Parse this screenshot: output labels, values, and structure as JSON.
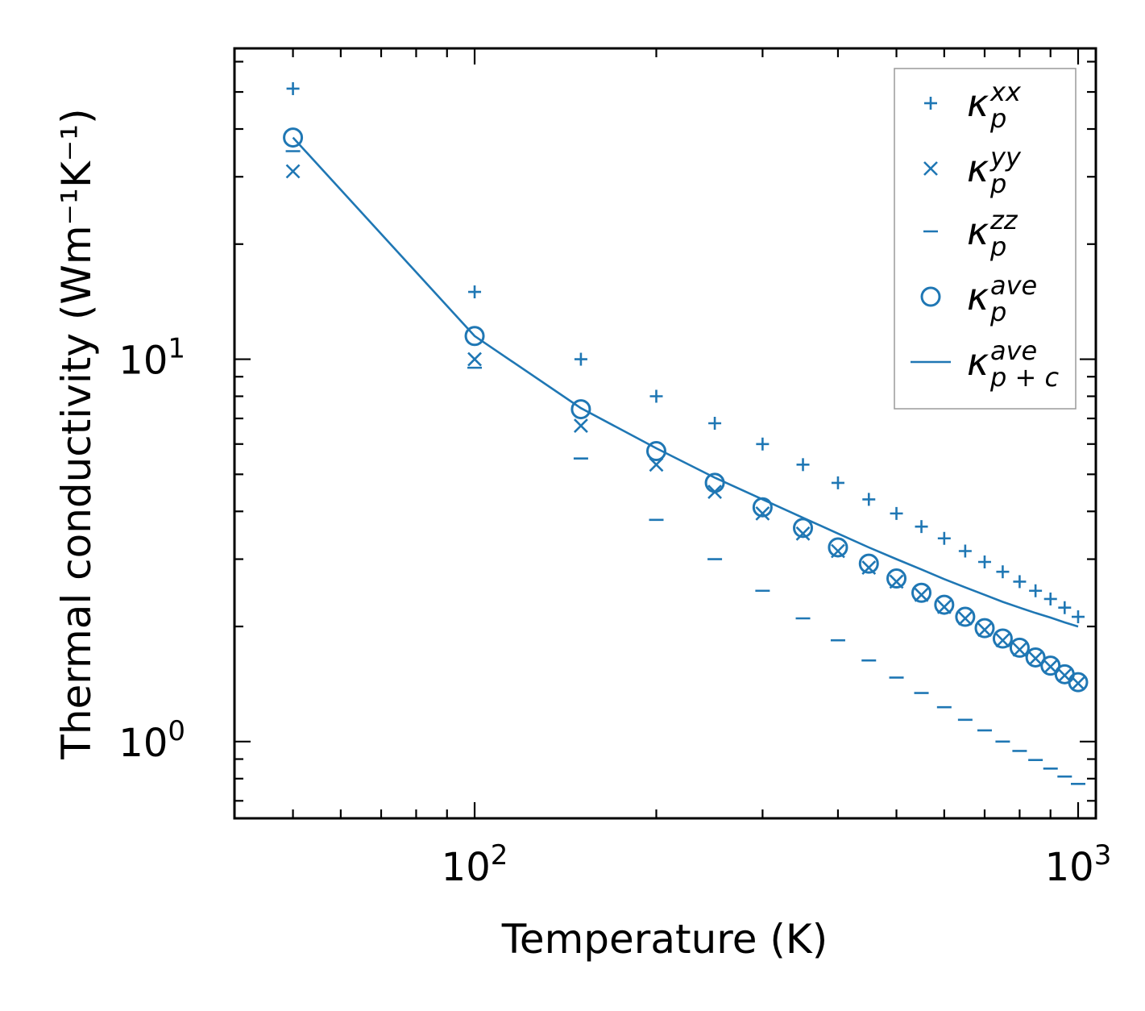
{
  "chart_data": {
    "type": "scatter",
    "xscale": "log",
    "yscale": "log",
    "xlabel": "Temperature (K)",
    "ylabel": "Thermal conductivity (Wm⁻¹K⁻¹)",
    "xlim": [
      40,
      1070
    ],
    "ylim": [
      0.63,
      65
    ],
    "xticks": [
      {
        "base": "10",
        "exp": "2",
        "value": 100
      },
      {
        "base": "10",
        "exp": "3",
        "value": 1000
      }
    ],
    "yticks": [
      {
        "base": "10",
        "exp": "0",
        "value": 1
      },
      {
        "base": "10",
        "exp": "1",
        "value": 10
      }
    ],
    "color": "#1f77b4",
    "x": [
      50,
      100,
      150,
      200,
      250,
      300,
      350,
      400,
      450,
      500,
      550,
      600,
      650,
      700,
      750,
      800,
      850,
      900,
      950,
      1000
    ],
    "series": [
      {
        "name": "kxx",
        "marker": "plus",
        "values": [
          51.0,
          15.0,
          10.0,
          8.0,
          6.8,
          6.0,
          5.3,
          4.75,
          4.3,
          3.95,
          3.65,
          3.4,
          3.15,
          2.95,
          2.78,
          2.62,
          2.48,
          2.36,
          2.24,
          2.12
        ]
      },
      {
        "name": "kyy",
        "marker": "x",
        "values": [
          31.0,
          10.0,
          6.7,
          5.3,
          4.5,
          3.95,
          3.5,
          3.15,
          2.85,
          2.62,
          2.42,
          2.25,
          2.1,
          1.96,
          1.84,
          1.74,
          1.65,
          1.57,
          1.49,
          1.42
        ]
      },
      {
        "name": "kzz",
        "marker": "hline",
        "values": [
          35.0,
          9.5,
          5.5,
          3.8,
          3.0,
          2.48,
          2.1,
          1.84,
          1.63,
          1.47,
          1.34,
          1.23,
          1.14,
          1.07,
          1.0,
          0.945,
          0.895,
          0.85,
          0.81,
          0.775
        ]
      },
      {
        "name": "kave",
        "marker": "circle",
        "values": [
          38.0,
          11.5,
          7.4,
          5.75,
          4.75,
          4.1,
          3.62,
          3.22,
          2.92,
          2.67,
          2.45,
          2.28,
          2.12,
          1.98,
          1.86,
          1.76,
          1.66,
          1.58,
          1.5,
          1.43
        ]
      },
      {
        "name": "kavepc",
        "marker": "line",
        "values": [
          38.0,
          11.5,
          7.45,
          5.85,
          4.9,
          4.3,
          3.85,
          3.5,
          3.22,
          3.0,
          2.82,
          2.66,
          2.53,
          2.42,
          2.32,
          2.24,
          2.17,
          2.11,
          2.05,
          2.0
        ]
      }
    ],
    "legend": {
      "placement": "top-right",
      "entries": [
        {
          "base": "κ",
          "sup": "xx",
          "sub": "p"
        },
        {
          "base": "κ",
          "sup": "yy",
          "sub": "p"
        },
        {
          "base": "κ",
          "sup": "zz",
          "sub": "p"
        },
        {
          "base": "κ",
          "sup": "ave",
          "sub": "p"
        },
        {
          "base": "κ",
          "sup": "ave",
          "sub": "p + c"
        }
      ]
    }
  }
}
